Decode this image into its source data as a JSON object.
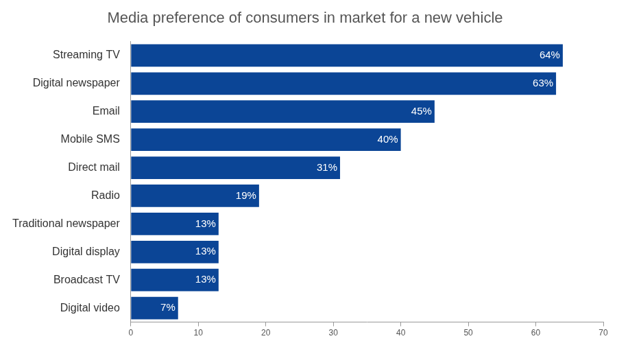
{
  "chart_data": {
    "type": "bar",
    "orientation": "horizontal",
    "title": "Media preference of consumers in market for a new vehicle",
    "categories": [
      "Streaming TV",
      "Digital newspaper",
      "Email",
      "Mobile SMS",
      "Direct mail",
      "Radio",
      "Traditional newspaper",
      "Digital display",
      "Broadcast TV",
      "Digital video"
    ],
    "values": [
      64,
      63,
      45,
      40,
      31,
      19,
      13,
      13,
      13,
      7
    ],
    "value_labels": [
      "64%",
      "63%",
      "45%",
      "40%",
      "31%",
      "19%",
      "13%",
      "13%",
      "13%",
      "7%"
    ],
    "color": "#0b4596",
    "xlim": [
      0,
      70
    ],
    "xticks": [
      0,
      10,
      20,
      30,
      40,
      50,
      60,
      70
    ],
    "grid": false,
    "data_labels": true
  }
}
